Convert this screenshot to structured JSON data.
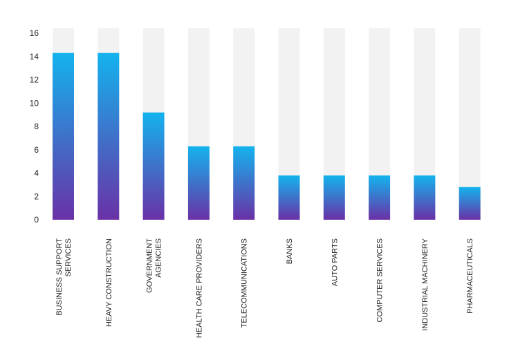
{
  "chart_data": {
    "type": "bar",
    "categories": [
      [
        "BUSINESS SUPPORT",
        "SERVICES"
      ],
      [
        "HEAVY CONSTRUCTION"
      ],
      [
        "GOVERNMENT",
        "AGENCIES"
      ],
      [
        "HEALTH CARE PROVIDERS"
      ],
      [
        "TELECOMMUNICATIONS"
      ],
      [
        "BANKS"
      ],
      [
        "AUTO PARTS"
      ],
      [
        "COMPUTER SERVICES"
      ],
      [
        "INDUSTRIAL MACHINERY"
      ],
      [
        "PHARMACEUTICALS"
      ]
    ],
    "values": [
      14.3,
      14.3,
      9.2,
      6.3,
      6.3,
      3.8,
      3.8,
      3.8,
      3.8,
      2.8
    ],
    "ylim": [
      0,
      16
    ],
    "yticks": [
      0,
      2,
      4,
      6,
      8,
      10,
      12,
      14,
      16
    ],
    "grid": false,
    "legend": "none",
    "colors": {
      "bar_top": "#13b3ee",
      "bar_bottom": "#6a31a6",
      "track": "#f2f2f2"
    }
  }
}
